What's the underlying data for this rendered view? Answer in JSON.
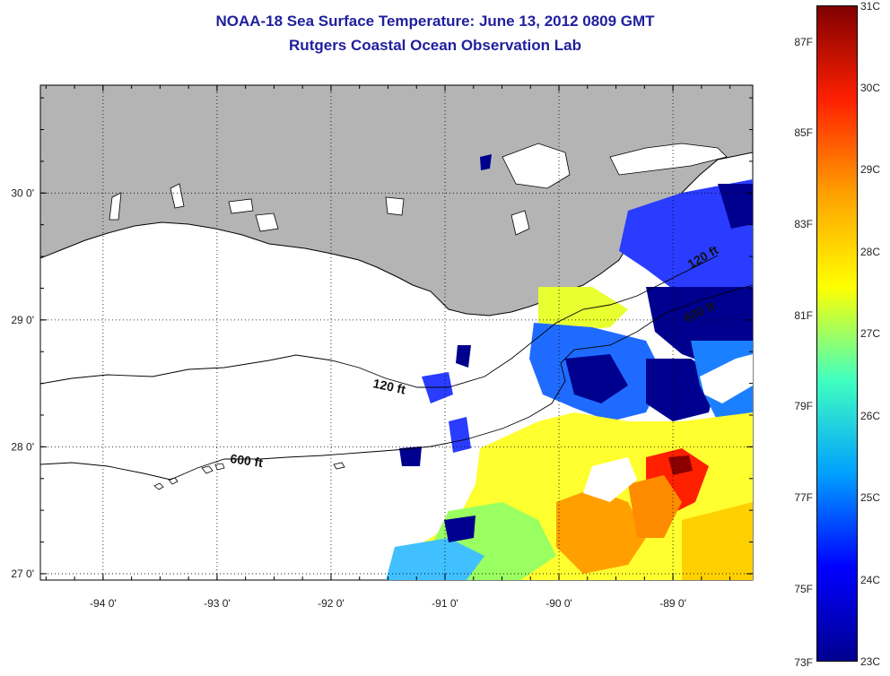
{
  "title_line1": "NOAA-18 Sea Surface Temperature:  June 13, 2012 0809 GMT",
  "title_line2": "Rutgers Coastal Ocean Observation Lab",
  "map": {
    "lon_range": [
      -94.55,
      -88.3
    ],
    "lat_range": [
      26.95,
      30.85
    ],
    "lon_ticks": [
      -94,
      -93,
      -92,
      -91,
      -90,
      -89
    ],
    "lon_labels": [
      "-94 0'",
      "-93 0'",
      "-92 0'",
      "-91 0'",
      "-90 0'",
      "-89 0'"
    ],
    "lat_ticks": [
      27,
      28,
      29,
      30
    ],
    "lat_labels": [
      "27 0'",
      "28 0'",
      "29 0'",
      "30 0'"
    ],
    "gridlines": true,
    "land_color": "#b4b4b4",
    "contour_labels": [
      "120 ft",
      "600 ft",
      "120 ft",
      "600 ft"
    ]
  },
  "colorbar": {
    "f_labels": [
      "87F",
      "85F",
      "83F",
      "81F",
      "79F",
      "77F",
      "75F",
      "73F"
    ],
    "c_labels": [
      "31C",
      "30C",
      "29C",
      "28C",
      "27C",
      "26C",
      "25C",
      "24C",
      "23C"
    ],
    "range_c": [
      23,
      31
    ],
    "colors": [
      "#00008f",
      "#0000ff",
      "#00a0ff",
      "#40ffc0",
      "#ffff00",
      "#ffa000",
      "#ff2000",
      "#800000"
    ]
  }
}
